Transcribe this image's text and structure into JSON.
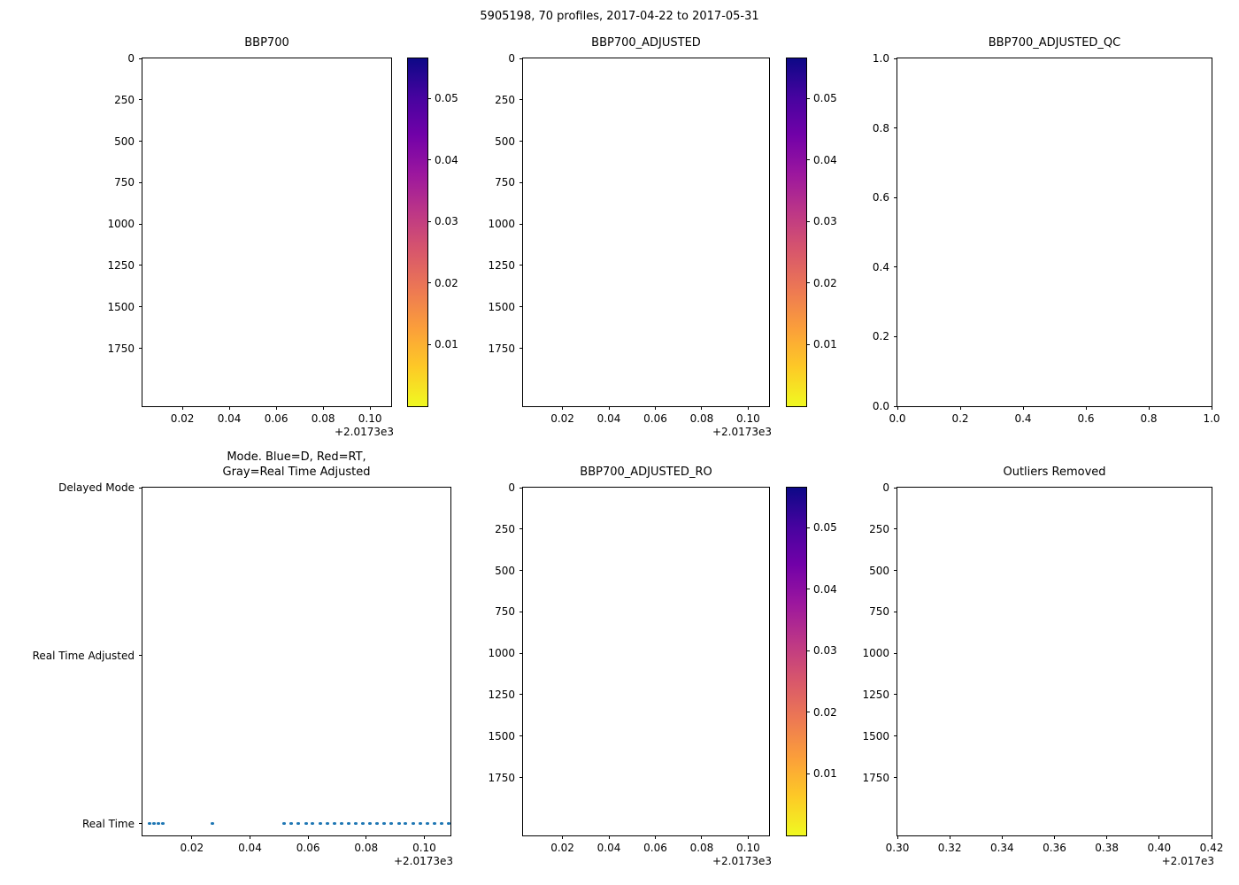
{
  "figure": {
    "title": "5905198, 70 profiles, 2017-04-22 to 2017-05-31"
  },
  "colors": {
    "background": "#ffffff",
    "axis": "#000000",
    "dot": "#1f77b4",
    "colorbar_gradient": [
      "#0d0887",
      "#46039f",
      "#7201a8",
      "#9c179e",
      "#bd3786",
      "#d8576b",
      "#ed7953",
      "#fb9f3a",
      "#fdca26",
      "#f0f921"
    ]
  },
  "chart_data": [
    {
      "id": "bbp700",
      "type": "scatter",
      "title": "BBP700",
      "xlim": [
        0.003,
        0.109
      ],
      "ylim": [
        0,
        2100
      ],
      "y_inverted": true,
      "xticks": [
        0.02,
        0.04,
        0.06,
        0.08,
        0.1
      ],
      "xtick_labels": [
        "0.02",
        "0.04",
        "0.06",
        "0.08",
        "0.10"
      ],
      "yticks": [
        0,
        250,
        500,
        750,
        1000,
        1250,
        1500,
        1750
      ],
      "ytick_labels": [
        "0",
        "250",
        "500",
        "750",
        "1000",
        "1250",
        "1500",
        "1750"
      ],
      "x_offset": "+2.0173e3",
      "colorbar": {
        "cmap": "plasma_r",
        "vmin": 0,
        "vmax": 0.0565,
        "ticks": [
          0.01,
          0.02,
          0.03,
          0.04,
          0.05
        ],
        "tick_labels": [
          "0.01",
          "0.02",
          "0.03",
          "0.04",
          "0.05"
        ]
      },
      "points": null
    },
    {
      "id": "bbp700-adjusted",
      "type": "scatter",
      "title": "BBP700_ADJUSTED",
      "xlim": [
        0.003,
        0.109
      ],
      "ylim": [
        0,
        2100
      ],
      "y_inverted": true,
      "xticks": [
        0.02,
        0.04,
        0.06,
        0.08,
        0.1
      ],
      "xtick_labels": [
        "0.02",
        "0.04",
        "0.06",
        "0.08",
        "0.10"
      ],
      "yticks": [
        0,
        250,
        500,
        750,
        1000,
        1250,
        1500,
        1750
      ],
      "ytick_labels": [
        "0",
        "250",
        "500",
        "750",
        "1000",
        "1250",
        "1500",
        "1750"
      ],
      "x_offset": "+2.0173e3",
      "colorbar": {
        "cmap": "plasma_r",
        "vmin": 0,
        "vmax": 0.0565,
        "ticks": [
          0.01,
          0.02,
          0.03,
          0.04,
          0.05
        ],
        "tick_labels": [
          "0.01",
          "0.02",
          "0.03",
          "0.04",
          "0.05"
        ]
      },
      "points": null
    },
    {
      "id": "bbp700-adjusted-qc",
      "type": "scatter",
      "title": "BBP700_ADJUSTED_QC",
      "xlim": [
        0,
        1
      ],
      "ylim": [
        0,
        1
      ],
      "y_inverted": false,
      "xticks": [
        0,
        0.2,
        0.4,
        0.6,
        0.8,
        1.0
      ],
      "xtick_labels": [
        "0.0",
        "0.2",
        "0.4",
        "0.6",
        "0.8",
        "1.0"
      ],
      "yticks": [
        0,
        0.2,
        0.4,
        0.6,
        0.8,
        1.0
      ],
      "ytick_labels": [
        "0.0",
        "0.2",
        "0.4",
        "0.6",
        "0.8",
        "1.0"
      ],
      "x_offset": null,
      "colorbar": null,
      "points": null
    },
    {
      "id": "mode",
      "type": "scatter",
      "title": "Mode. Blue=D, Red=RT,\nGray=Real Time Adjusted",
      "xlim": [
        0.003,
        0.109
      ],
      "ylim": [
        -0.07,
        2.0
      ],
      "y_inverted": false,
      "xticks": [
        0.02,
        0.04,
        0.06,
        0.08,
        0.1
      ],
      "xtick_labels": [
        "0.02",
        "0.04",
        "0.06",
        "0.08",
        "0.10"
      ],
      "yticks": [
        2,
        1,
        0
      ],
      "ytick_labels": [
        "Delayed Mode",
        "Real Time Adjusted",
        "Real Time"
      ],
      "x_offset": "+2.0173e3",
      "colorbar": null,
      "points": {
        "series_name": "Real Time profiles",
        "y_value": 0,
        "y_label": "Real Time",
        "x": [
          0.0055,
          0.007,
          0.0085,
          0.01,
          0.0272,
          0.0518,
          0.0543,
          0.0567,
          0.0592,
          0.0616,
          0.0641,
          0.0666,
          0.069,
          0.0715,
          0.0739,
          0.0764,
          0.0789,
          0.0813,
          0.0838,
          0.0862,
          0.0887,
          0.0912,
          0.0936,
          0.0961,
          0.0985,
          0.101,
          0.1035,
          0.1059,
          0.1084
        ]
      }
    },
    {
      "id": "bbp700-adjusted-ro",
      "type": "scatter",
      "title": "BBP700_ADJUSTED_RO",
      "xlim": [
        0.003,
        0.109
      ],
      "ylim": [
        0,
        2100
      ],
      "y_inverted": true,
      "xticks": [
        0.02,
        0.04,
        0.06,
        0.08,
        0.1
      ],
      "xtick_labels": [
        "0.02",
        "0.04",
        "0.06",
        "0.08",
        "0.10"
      ],
      "yticks": [
        0,
        250,
        500,
        750,
        1000,
        1250,
        1500,
        1750
      ],
      "ytick_labels": [
        "0",
        "250",
        "500",
        "750",
        "1000",
        "1250",
        "1500",
        "1750"
      ],
      "x_offset": "+2.0173e3",
      "colorbar": {
        "cmap": "plasma_r",
        "vmin": 0,
        "vmax": 0.0565,
        "ticks": [
          0.01,
          0.02,
          0.03,
          0.04,
          0.05
        ],
        "tick_labels": [
          "0.01",
          "0.02",
          "0.03",
          "0.04",
          "0.05"
        ]
      },
      "points": null
    },
    {
      "id": "outliers-removed",
      "type": "scatter",
      "title": "Outliers Removed",
      "xlim": [
        0.3,
        0.42
      ],
      "ylim": [
        0,
        2100
      ],
      "y_inverted": true,
      "xticks": [
        0.3,
        0.32,
        0.34,
        0.36,
        0.38,
        0.4,
        0.42
      ],
      "xtick_labels": [
        "0.30",
        "0.32",
        "0.34",
        "0.36",
        "0.38",
        "0.40",
        "0.42"
      ],
      "yticks": [
        0,
        250,
        500,
        750,
        1000,
        1250,
        1500,
        1750
      ],
      "ytick_labels": [
        "0",
        "250",
        "500",
        "750",
        "1000",
        "1250",
        "1500",
        "1750"
      ],
      "x_offset": "+2.017e3",
      "colorbar": null,
      "points": null
    }
  ]
}
